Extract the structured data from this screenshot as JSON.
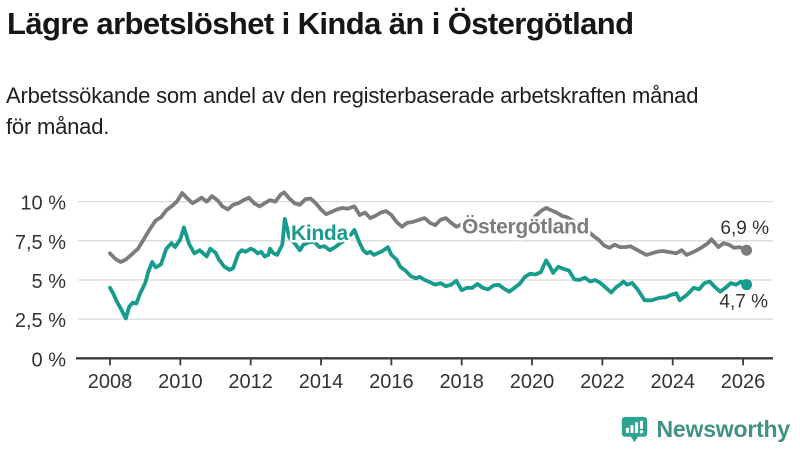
{
  "title": "Lägre arbetslöshet i Kinda än i Östergötland",
  "subtitle_lines": [
    "Arbetssökande som andel av den registerbaserade arbetskraften månad",
    "för månad."
  ],
  "branding": {
    "name": "Newsworthy"
  },
  "colors": {
    "kinda": "#169b8d",
    "ostergotland": "#7c7c7c",
    "grid": "#dadada",
    "axis_line": "#3a3a3a",
    "axis_text": "#333333",
    "title_text": "#161616",
    "logo_icon": "#2da392",
    "logo_text": "#3f9284"
  },
  "chart_data": {
    "type": "line",
    "unit": "%",
    "grid": true,
    "legend_position": "inline-labels",
    "x_ticks": [
      2008,
      2010,
      2012,
      2014,
      2016,
      2018,
      2020,
      2022,
      2024,
      2026
    ],
    "x_range": [
      2007.8,
      2026.6
    ],
    "y_range": [
      0,
      11.5
    ],
    "y_ticks": [
      {
        "value": 0,
        "label": "0 %"
      },
      {
        "value": 2.5,
        "label": "2,5 %"
      },
      {
        "value": 5,
        "label": "5 %"
      },
      {
        "value": 7.5,
        "label": "7,5 %"
      },
      {
        "value": 10,
        "label": "10 %"
      }
    ],
    "series": [
      {
        "name": "Östergötland",
        "color": "#7c7c7c",
        "end_label": "6,9 %",
        "end_value": 6.9,
        "points": [
          [
            2008.0,
            6.7
          ],
          [
            2008.15,
            6.35
          ],
          [
            2008.3,
            6.15
          ],
          [
            2008.45,
            6.3
          ],
          [
            2008.6,
            6.6
          ],
          [
            2008.8,
            7.0
          ],
          [
            2009.0,
            7.75
          ],
          [
            2009.15,
            8.3
          ],
          [
            2009.3,
            8.8
          ],
          [
            2009.45,
            9.0
          ],
          [
            2009.6,
            9.45
          ],
          [
            2009.75,
            9.7
          ],
          [
            2009.9,
            10.0
          ],
          [
            2010.05,
            10.55
          ],
          [
            2010.2,
            10.2
          ],
          [
            2010.35,
            9.9
          ],
          [
            2010.5,
            10.1
          ],
          [
            2010.6,
            10.25
          ],
          [
            2010.75,
            10.0
          ],
          [
            2010.9,
            10.35
          ],
          [
            2011.05,
            10.1
          ],
          [
            2011.2,
            9.7
          ],
          [
            2011.35,
            9.5
          ],
          [
            2011.5,
            9.8
          ],
          [
            2011.65,
            9.9
          ],
          [
            2011.8,
            10.1
          ],
          [
            2011.95,
            10.25
          ],
          [
            2012.1,
            9.9
          ],
          [
            2012.25,
            9.7
          ],
          [
            2012.4,
            9.9
          ],
          [
            2012.55,
            10.1
          ],
          [
            2012.7,
            10.0
          ],
          [
            2012.85,
            10.45
          ],
          [
            2012.95,
            10.6
          ],
          [
            2013.1,
            10.2
          ],
          [
            2013.25,
            9.9
          ],
          [
            2013.4,
            9.8
          ],
          [
            2013.55,
            10.15
          ],
          [
            2013.7,
            10.2
          ],
          [
            2013.85,
            9.9
          ],
          [
            2014.0,
            9.5
          ],
          [
            2014.15,
            9.2
          ],
          [
            2014.3,
            9.35
          ],
          [
            2014.45,
            9.5
          ],
          [
            2014.6,
            9.6
          ],
          [
            2014.75,
            9.55
          ],
          [
            2014.95,
            9.7
          ],
          [
            2015.1,
            9.15
          ],
          [
            2015.25,
            9.3
          ],
          [
            2015.4,
            8.95
          ],
          [
            2015.55,
            9.1
          ],
          [
            2015.7,
            9.3
          ],
          [
            2015.85,
            9.4
          ],
          [
            2016.0,
            9.15
          ],
          [
            2016.15,
            8.7
          ],
          [
            2016.3,
            8.4
          ],
          [
            2016.45,
            8.65
          ],
          [
            2016.6,
            8.7
          ],
          [
            2016.8,
            8.85
          ],
          [
            2016.95,
            8.95
          ],
          [
            2017.1,
            8.65
          ],
          [
            2017.25,
            8.5
          ],
          [
            2017.4,
            8.85
          ],
          [
            2017.55,
            8.95
          ],
          [
            2017.7,
            8.65
          ],
          [
            2017.85,
            8.4
          ],
          [
            2018.0,
            8.55
          ],
          [
            2018.15,
            8.65
          ],
          [
            2018.3,
            8.5
          ],
          [
            2018.45,
            8.4
          ],
          [
            2018.6,
            8.55
          ],
          [
            2018.75,
            8.45
          ],
          [
            2018.9,
            8.3
          ],
          [
            2019.05,
            8.4
          ],
          [
            2019.2,
            8.5
          ],
          [
            2019.35,
            8.35
          ],
          [
            2019.5,
            8.25
          ],
          [
            2019.65,
            8.4
          ],
          [
            2019.8,
            8.55
          ],
          [
            2019.95,
            8.7
          ],
          [
            2020.1,
            9.1
          ],
          [
            2020.25,
            9.4
          ],
          [
            2020.4,
            9.6
          ],
          [
            2020.55,
            9.45
          ],
          [
            2020.7,
            9.3
          ],
          [
            2020.85,
            9.1
          ],
          [
            2021.0,
            9.0
          ],
          [
            2021.15,
            8.8
          ],
          [
            2021.3,
            8.55
          ],
          [
            2021.45,
            8.3
          ],
          [
            2021.6,
            8.1
          ],
          [
            2021.75,
            7.8
          ],
          [
            2021.9,
            7.55
          ],
          [
            2022.05,
            7.2
          ],
          [
            2022.2,
            7.05
          ],
          [
            2022.35,
            7.25
          ],
          [
            2022.5,
            7.1
          ],
          [
            2022.65,
            7.1
          ],
          [
            2022.8,
            7.15
          ],
          [
            2023.0,
            6.9
          ],
          [
            2023.25,
            6.6
          ],
          [
            2023.4,
            6.7
          ],
          [
            2023.55,
            6.8
          ],
          [
            2023.7,
            6.85
          ],
          [
            2023.85,
            6.8
          ],
          [
            2024.0,
            6.75
          ],
          [
            2024.1,
            6.7
          ],
          [
            2024.25,
            6.9
          ],
          [
            2024.4,
            6.6
          ],
          [
            2024.6,
            6.8
          ],
          [
            2024.8,
            7.05
          ],
          [
            2025.0,
            7.35
          ],
          [
            2025.1,
            7.6
          ],
          [
            2025.3,
            7.1
          ],
          [
            2025.45,
            7.35
          ],
          [
            2025.6,
            7.25
          ],
          [
            2025.75,
            7.05
          ],
          [
            2025.9,
            7.1
          ],
          [
            2026.1,
            6.9
          ]
        ]
      },
      {
        "name": "Kinda",
        "color": "#169b8d",
        "end_label": "4,7 %",
        "end_value": 4.7,
        "points": [
          [
            2008.0,
            4.5
          ],
          [
            2008.1,
            4.1
          ],
          [
            2008.2,
            3.6
          ],
          [
            2008.3,
            3.2
          ],
          [
            2008.45,
            2.55
          ],
          [
            2008.55,
            3.3
          ],
          [
            2008.65,
            3.55
          ],
          [
            2008.75,
            3.5
          ],
          [
            2008.85,
            4.1
          ],
          [
            2009.0,
            4.8
          ],
          [
            2009.1,
            5.6
          ],
          [
            2009.2,
            6.15
          ],
          [
            2009.3,
            5.8
          ],
          [
            2009.45,
            6.0
          ],
          [
            2009.6,
            7.0
          ],
          [
            2009.75,
            7.35
          ],
          [
            2009.85,
            7.1
          ],
          [
            2010.0,
            7.6
          ],
          [
            2010.1,
            8.35
          ],
          [
            2010.25,
            7.3
          ],
          [
            2010.4,
            6.7
          ],
          [
            2010.55,
            6.9
          ],
          [
            2010.75,
            6.5
          ],
          [
            2010.85,
            7.0
          ],
          [
            2011.0,
            6.75
          ],
          [
            2011.1,
            6.3
          ],
          [
            2011.25,
            5.85
          ],
          [
            2011.4,
            5.65
          ],
          [
            2011.5,
            5.75
          ],
          [
            2011.65,
            6.7
          ],
          [
            2011.75,
            6.9
          ],
          [
            2011.85,
            6.8
          ],
          [
            2012.0,
            7.0
          ],
          [
            2012.1,
            6.9
          ],
          [
            2012.2,
            6.7
          ],
          [
            2012.3,
            6.8
          ],
          [
            2012.4,
            6.5
          ],
          [
            2012.5,
            6.6
          ],
          [
            2012.55,
            7.0
          ],
          [
            2012.65,
            6.7
          ],
          [
            2012.75,
            6.6
          ],
          [
            2012.9,
            7.25
          ],
          [
            2012.97,
            8.9
          ],
          [
            2013.1,
            7.7
          ],
          [
            2013.25,
            7.35
          ],
          [
            2013.4,
            6.9
          ],
          [
            2013.5,
            7.25
          ],
          [
            2013.65,
            7.4
          ],
          [
            2013.8,
            7.45
          ],
          [
            2013.95,
            7.1
          ],
          [
            2014.1,
            7.15
          ],
          [
            2014.25,
            6.9
          ],
          [
            2014.4,
            7.1
          ],
          [
            2014.55,
            7.35
          ],
          [
            2014.7,
            7.6
          ],
          [
            2014.85,
            7.9
          ],
          [
            2014.95,
            8.2
          ],
          [
            2015.1,
            7.35
          ],
          [
            2015.2,
            6.9
          ],
          [
            2015.3,
            6.7
          ],
          [
            2015.4,
            6.8
          ],
          [
            2015.5,
            6.6
          ],
          [
            2015.6,
            6.7
          ],
          [
            2015.75,
            6.85
          ],
          [
            2015.9,
            7.1
          ],
          [
            2016.0,
            6.6
          ],
          [
            2016.15,
            6.3
          ],
          [
            2016.25,
            5.85
          ],
          [
            2016.4,
            5.6
          ],
          [
            2016.55,
            5.25
          ],
          [
            2016.7,
            5.1
          ],
          [
            2016.8,
            5.2
          ],
          [
            2016.95,
            5.0
          ],
          [
            2017.1,
            4.85
          ],
          [
            2017.25,
            4.7
          ],
          [
            2017.4,
            4.8
          ],
          [
            2017.55,
            4.6
          ],
          [
            2017.7,
            4.7
          ],
          [
            2017.85,
            4.95
          ],
          [
            2018.0,
            4.35
          ],
          [
            2018.15,
            4.5
          ],
          [
            2018.3,
            4.5
          ],
          [
            2018.45,
            4.75
          ],
          [
            2018.6,
            4.5
          ],
          [
            2018.75,
            4.4
          ],
          [
            2018.9,
            4.65
          ],
          [
            2019.05,
            4.7
          ],
          [
            2019.2,
            4.45
          ],
          [
            2019.35,
            4.25
          ],
          [
            2019.5,
            4.5
          ],
          [
            2019.65,
            4.75
          ],
          [
            2019.8,
            5.2
          ],
          [
            2019.95,
            5.4
          ],
          [
            2020.1,
            5.35
          ],
          [
            2020.25,
            5.5
          ],
          [
            2020.4,
            6.25
          ],
          [
            2020.5,
            5.9
          ],
          [
            2020.6,
            5.45
          ],
          [
            2020.75,
            5.85
          ],
          [
            2020.9,
            5.7
          ],
          [
            2021.05,
            5.6
          ],
          [
            2021.2,
            5.05
          ],
          [
            2021.35,
            5.0
          ],
          [
            2021.5,
            5.15
          ],
          [
            2021.65,
            4.9
          ],
          [
            2021.8,
            5.0
          ],
          [
            2021.95,
            4.8
          ],
          [
            2022.1,
            4.5
          ],
          [
            2022.25,
            4.2
          ],
          [
            2022.4,
            4.55
          ],
          [
            2022.5,
            4.7
          ],
          [
            2022.6,
            4.9
          ],
          [
            2022.7,
            4.7
          ],
          [
            2022.85,
            4.8
          ],
          [
            2023.0,
            4.4
          ],
          [
            2023.2,
            3.7
          ],
          [
            2023.4,
            3.7
          ],
          [
            2023.6,
            3.85
          ],
          [
            2023.8,
            3.9
          ],
          [
            2023.95,
            4.05
          ],
          [
            2024.1,
            4.15
          ],
          [
            2024.2,
            3.7
          ],
          [
            2024.4,
            4.05
          ],
          [
            2024.6,
            4.5
          ],
          [
            2024.75,
            4.4
          ],
          [
            2024.9,
            4.8
          ],
          [
            2025.05,
            4.9
          ],
          [
            2025.2,
            4.55
          ],
          [
            2025.35,
            4.25
          ],
          [
            2025.5,
            4.5
          ],
          [
            2025.65,
            4.8
          ],
          [
            2025.8,
            4.7
          ],
          [
            2025.95,
            4.9
          ],
          [
            2026.1,
            4.7
          ]
        ]
      }
    ]
  }
}
